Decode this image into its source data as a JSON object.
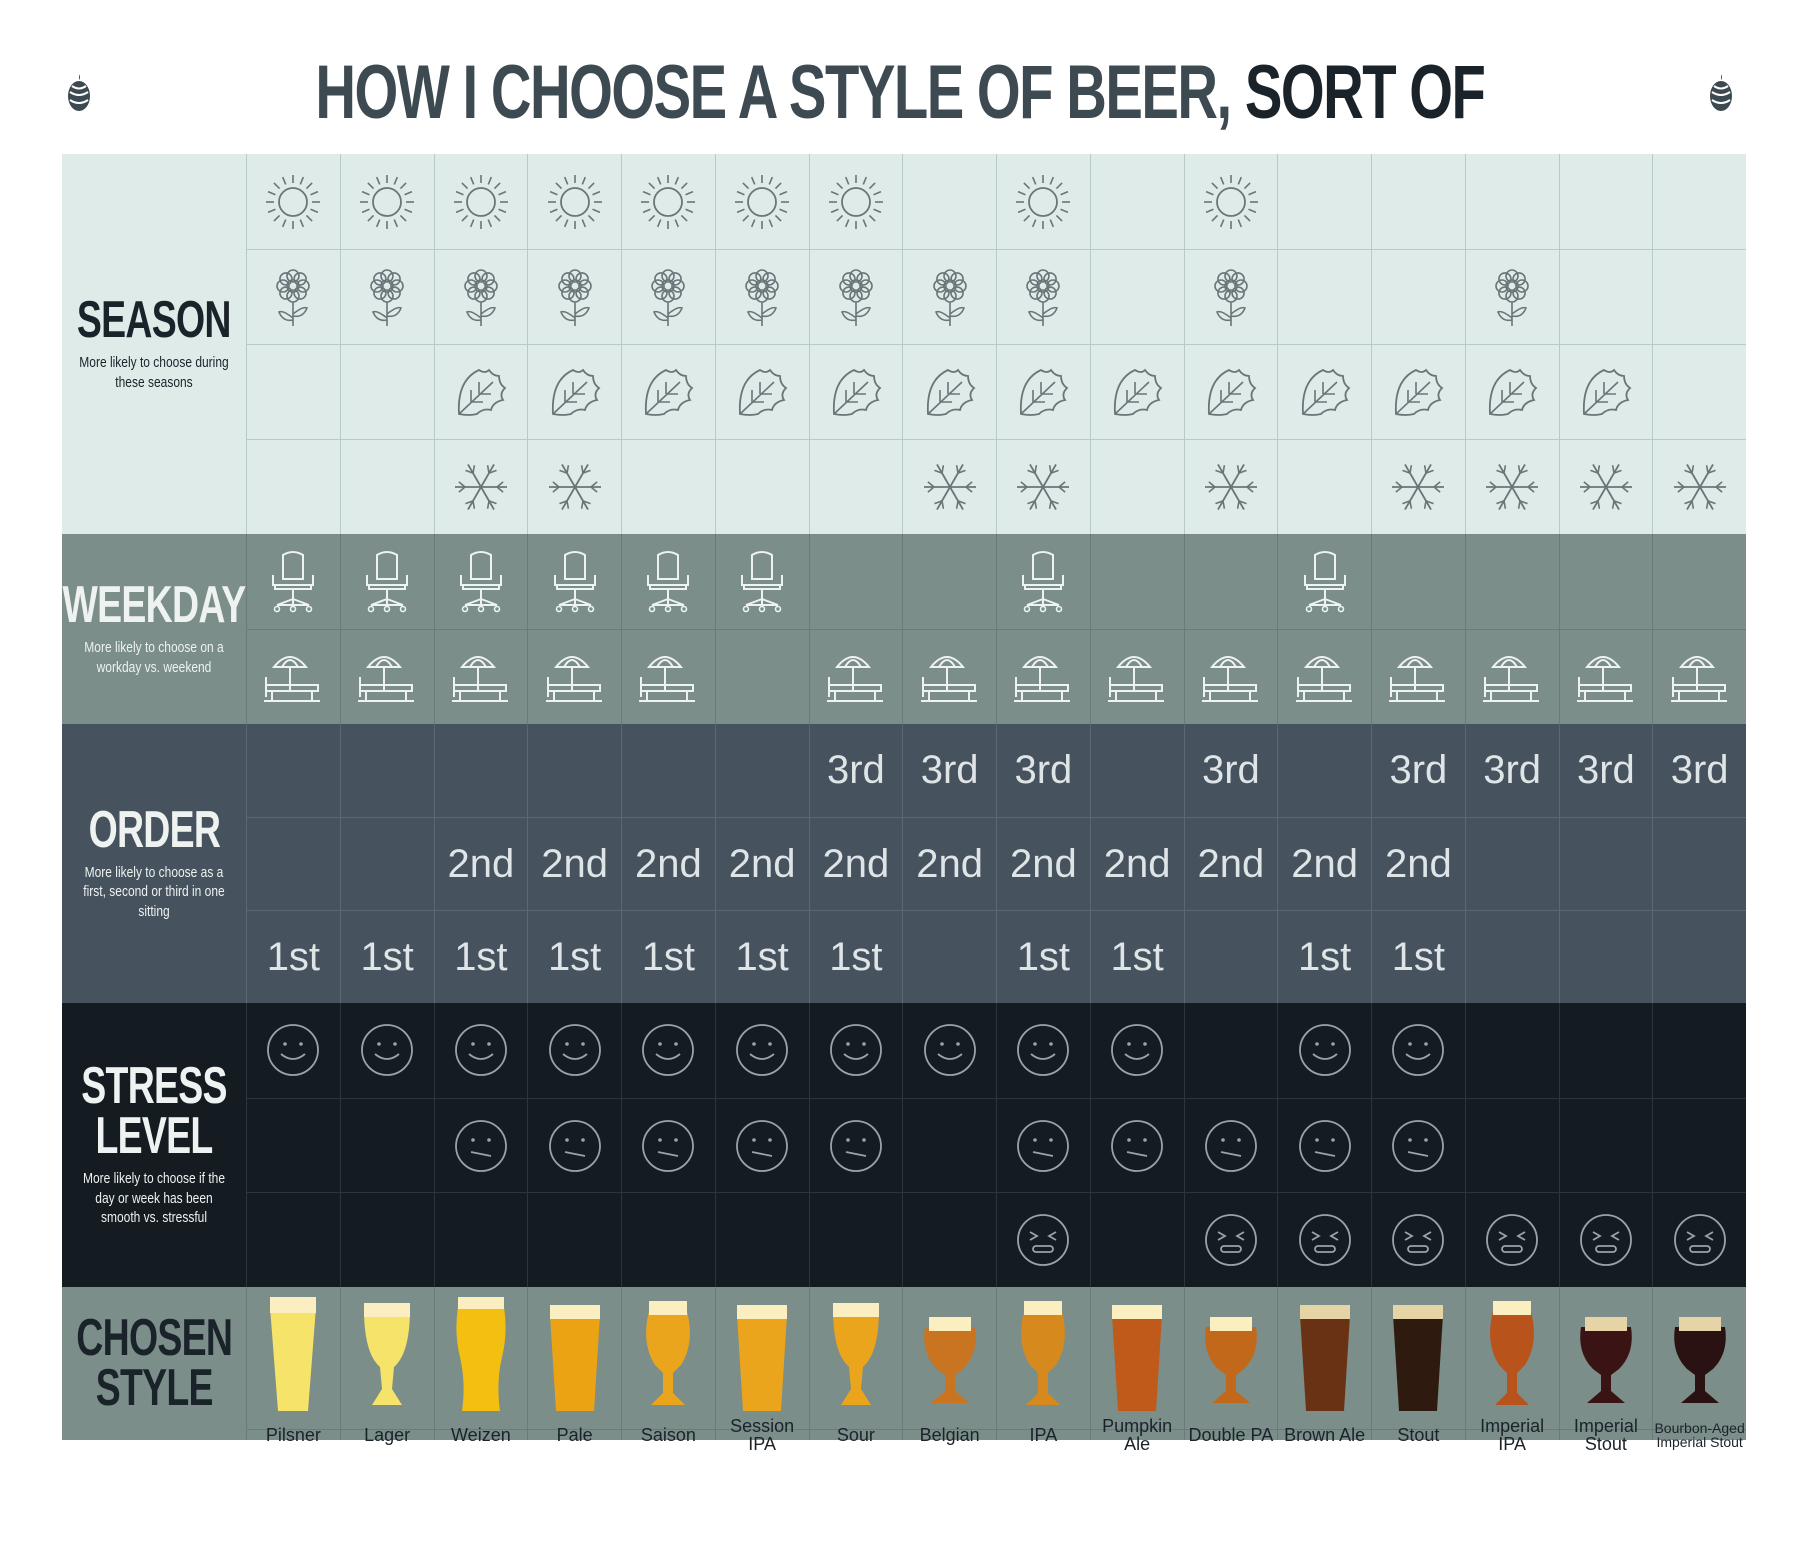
{
  "title": {
    "part1": "HOW I CHOOSE A STYLE OF BEER,",
    "part2": "SORT OF"
  },
  "colors": {
    "season_bg": "#deebe9",
    "season_line": "#b9c9c8",
    "weekday_bg": "#7b8e8a",
    "order_bg": "#46525d",
    "stress_bg": "#141c22",
    "chosen_bg": "#7b8e8a",
    "icon_light": "#6b7478",
    "icon_mid": "#eef2f1",
    "icon_dark": "#9aa3a8"
  },
  "sections": {
    "season": {
      "title": "SEASON",
      "desc": "More likely to choose during these seasons"
    },
    "weekday": {
      "title": "WEEKDAY",
      "desc": "More likely to choose on a workday vs. weekend"
    },
    "order": {
      "title": "ORDER",
      "desc": "More likely to choose as a first, second or third in one sitting"
    },
    "stress": {
      "title": "STRESS\nLEVEL",
      "desc": "More likely to choose if the day or week has been smooth vs. stressful"
    },
    "chosen": {
      "title": "CHOSEN\nSTYLE"
    }
  },
  "order_labels": {
    "first": "1st",
    "second": "2nd",
    "third": "3rd"
  },
  "beers": [
    {
      "name": "Pilsner",
      "color": "#f6e36a",
      "glass": "pilsner",
      "season": [
        1,
        1,
        0,
        0
      ],
      "weekday": [
        1,
        1
      ],
      "order": [
        0,
        0,
        1
      ],
      "stress": [
        1,
        0,
        0
      ]
    },
    {
      "name": "Lager",
      "color": "#f6e36a",
      "glass": "stem",
      "season": [
        1,
        1,
        0,
        0
      ],
      "weekday": [
        1,
        1
      ],
      "order": [
        0,
        0,
        1
      ],
      "stress": [
        1,
        0,
        0
      ]
    },
    {
      "name": "Weizen",
      "color": "#f3bf10",
      "glass": "weizen",
      "season": [
        1,
        1,
        1,
        1
      ],
      "weekday": [
        1,
        1
      ],
      "order": [
        0,
        1,
        1
      ],
      "stress": [
        1,
        1,
        0
      ]
    },
    {
      "name": "Pale",
      "color": "#eba314",
      "glass": "pint",
      "season": [
        1,
        1,
        1,
        1
      ],
      "weekday": [
        1,
        1
      ],
      "order": [
        0,
        1,
        1
      ],
      "stress": [
        1,
        1,
        0
      ]
    },
    {
      "name": "Saison",
      "color": "#eaa51c",
      "glass": "tulip",
      "season": [
        1,
        1,
        1,
        0
      ],
      "weekday": [
        1,
        1
      ],
      "order": [
        0,
        1,
        1
      ],
      "stress": [
        1,
        1,
        0
      ]
    },
    {
      "name": "Session IPA",
      "color": "#eaa51c",
      "glass": "pint",
      "season": [
        1,
        1,
        1,
        0
      ],
      "weekday": [
        1,
        0
      ],
      "order": [
        0,
        1,
        1
      ],
      "stress": [
        1,
        1,
        0
      ]
    },
    {
      "name": "Sour",
      "color": "#eaa51c",
      "glass": "stem",
      "season": [
        1,
        1,
        1,
        0
      ],
      "weekday": [
        0,
        1
      ],
      "order": [
        1,
        1,
        1
      ],
      "stress": [
        1,
        1,
        0
      ]
    },
    {
      "name": "Belgian",
      "color": "#c97421",
      "glass": "goblet",
      "season": [
        0,
        1,
        1,
        1
      ],
      "weekday": [
        0,
        1
      ],
      "order": [
        1,
        1,
        0
      ],
      "stress": [
        1,
        0,
        0
      ]
    },
    {
      "name": "IPA",
      "color": "#d6891c",
      "glass": "tulip",
      "season": [
        1,
        1,
        1,
        1
      ],
      "weekday": [
        1,
        1
      ],
      "order": [
        1,
        1,
        1
      ],
      "stress": [
        1,
        1,
        1
      ]
    },
    {
      "name": "Pumpkin Ale",
      "color": "#bf5a1a",
      "glass": "pint",
      "season": [
        0,
        0,
        1,
        0
      ],
      "weekday": [
        0,
        1
      ],
      "order": [
        0,
        1,
        1
      ],
      "stress": [
        1,
        1,
        0
      ]
    },
    {
      "name": "Double PA",
      "color": "#c1681b",
      "glass": "goblet",
      "season": [
        1,
        1,
        1,
        1
      ],
      "weekday": [
        0,
        1
      ],
      "order": [
        1,
        1,
        0
      ],
      "stress": [
        0,
        1,
        1
      ]
    },
    {
      "name": "Brown Ale",
      "color": "#6a3214",
      "glass": "pint",
      "season": [
        0,
        0,
        1,
        0
      ],
      "weekday": [
        1,
        1
      ],
      "order": [
        0,
        1,
        1
      ],
      "stress": [
        1,
        1,
        1
      ]
    },
    {
      "name": "Stout",
      "color": "#2f1a10",
      "glass": "pint",
      "season": [
        0,
        0,
        1,
        1
      ],
      "weekday": [
        0,
        1
      ],
      "order": [
        1,
        1,
        1
      ],
      "stress": [
        1,
        1,
        1
      ]
    },
    {
      "name": "Imperial IPA",
      "color": "#b8531c",
      "glass": "tulip",
      "season": [
        0,
        1,
        1,
        1
      ],
      "weekday": [
        0,
        1
      ],
      "order": [
        1,
        0,
        0
      ],
      "stress": [
        0,
        0,
        1
      ]
    },
    {
      "name": "Imperial Stout",
      "color": "#3a1315",
      "glass": "goblet",
      "season": [
        0,
        0,
        1,
        1
      ],
      "weekday": [
        0,
        1
      ],
      "order": [
        1,
        0,
        0
      ],
      "stress": [
        0,
        0,
        1
      ]
    },
    {
      "name": "Bourbon-Aged Imperial Stout",
      "color": "#2a1212",
      "glass": "goblet",
      "season": [
        0,
        0,
        0,
        1
      ],
      "weekday": [
        0,
        1
      ],
      "order": [
        1,
        0,
        0
      ],
      "stress": [
        0,
        0,
        1
      ]
    }
  ]
}
